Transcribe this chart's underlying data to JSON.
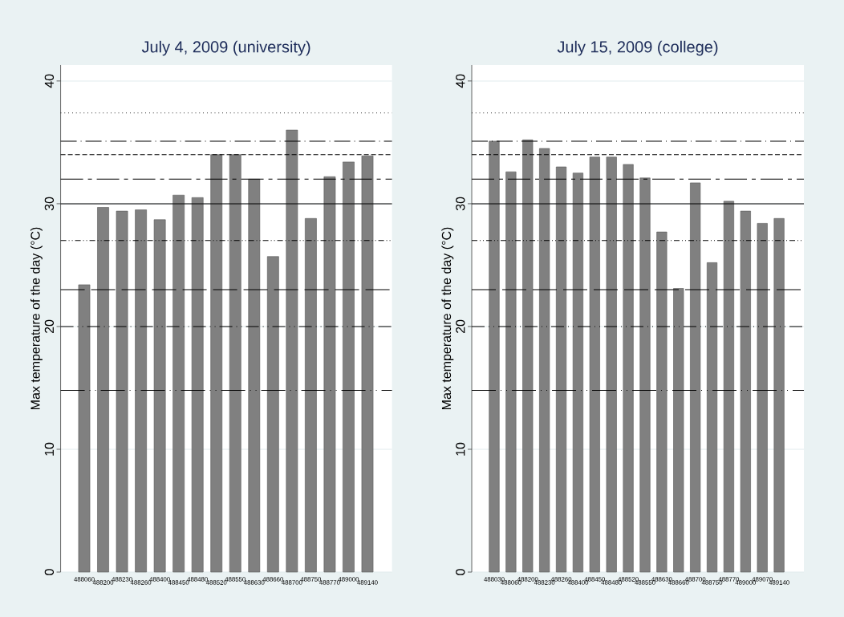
{
  "chart_data": [
    {
      "type": "bar",
      "title": "July 4, 2009 (university)",
      "ylabel": "Max temperature of the day (°C)",
      "categories": [
        "488060",
        "488200",
        "488230",
        "488260",
        "488400",
        "488450",
        "488480",
        "488520",
        "488550",
        "488630",
        "488660",
        "488700",
        "488750",
        "488770",
        "489000",
        "489140"
      ],
      "values": [
        23.4,
        29.7,
        29.4,
        29.5,
        28.7,
        30.7,
        30.5,
        34.0,
        34.0,
        32.0,
        25.7,
        36.0,
        28.8,
        32.2,
        33.4,
        33.9
      ],
      "color": "#808080",
      "ylim": [
        0,
        41.3
      ],
      "yticks": [
        0,
        10,
        20,
        30,
        40
      ],
      "grid": "y",
      "ref_lines": [
        {
          "axis": "y",
          "value": 37.4,
          "line_style": "dotted"
        },
        {
          "axis": "y",
          "value": 35.1,
          "line_style": "longdashdot"
        },
        {
          "axis": "y",
          "value": 34.0,
          "line_style": "dashed"
        },
        {
          "axis": "y",
          "value": 32.0,
          "line_style": "longdashshortdash"
        },
        {
          "axis": "y",
          "value": 30,
          "line_style": "solid"
        },
        {
          "axis": "y",
          "value": 27.0,
          "line_style": "dashdotdot"
        },
        {
          "axis": "y",
          "value": 23.0,
          "line_style": "longdash"
        },
        {
          "axis": "y",
          "value": 20,
          "line_style": "dashdot"
        },
        {
          "axis": "y",
          "value": 14.8,
          "line_style": "longdashdotdot"
        }
      ]
    },
    {
      "type": "bar",
      "title": "July 15, 2009 (college)",
      "ylabel": "Max temperature of the day (°C)",
      "categories": [
        "488030",
        "488060",
        "488200",
        "488230",
        "488260",
        "488400",
        "488450",
        "488480",
        "488520",
        "488550",
        "488630",
        "488660",
        "488700",
        "488750",
        "488770",
        "489000",
        "489070",
        "489140"
      ],
      "values": [
        35.1,
        32.6,
        35.2,
        34.5,
        33.0,
        32.5,
        33.8,
        33.8,
        33.2,
        32.1,
        27.7,
        23.1,
        31.7,
        25.2,
        30.2,
        29.4,
        28.4,
        28.8
      ],
      "color": "#808080",
      "ylim": [
        0,
        41.3
      ],
      "yticks": [
        0,
        10,
        20,
        30,
        40
      ],
      "grid": "y",
      "ref_lines": [
        {
          "axis": "y",
          "value": 37.4,
          "line_style": "dotted"
        },
        {
          "axis": "y",
          "value": 35.1,
          "line_style": "longdashdot"
        },
        {
          "axis": "y",
          "value": 34.0,
          "line_style": "dashed"
        },
        {
          "axis": "y",
          "value": 32.0,
          "line_style": "longdashshortdash"
        },
        {
          "axis": "y",
          "value": 30,
          "line_style": "solid"
        },
        {
          "axis": "y",
          "value": 27.0,
          "line_style": "dashdotdot"
        },
        {
          "axis": "y",
          "value": 23.0,
          "line_style": "longdash"
        },
        {
          "axis": "y",
          "value": 20,
          "line_style": "dashdot"
        },
        {
          "axis": "y",
          "value": 14.8,
          "line_style": "longdashdotdot"
        }
      ]
    }
  ]
}
